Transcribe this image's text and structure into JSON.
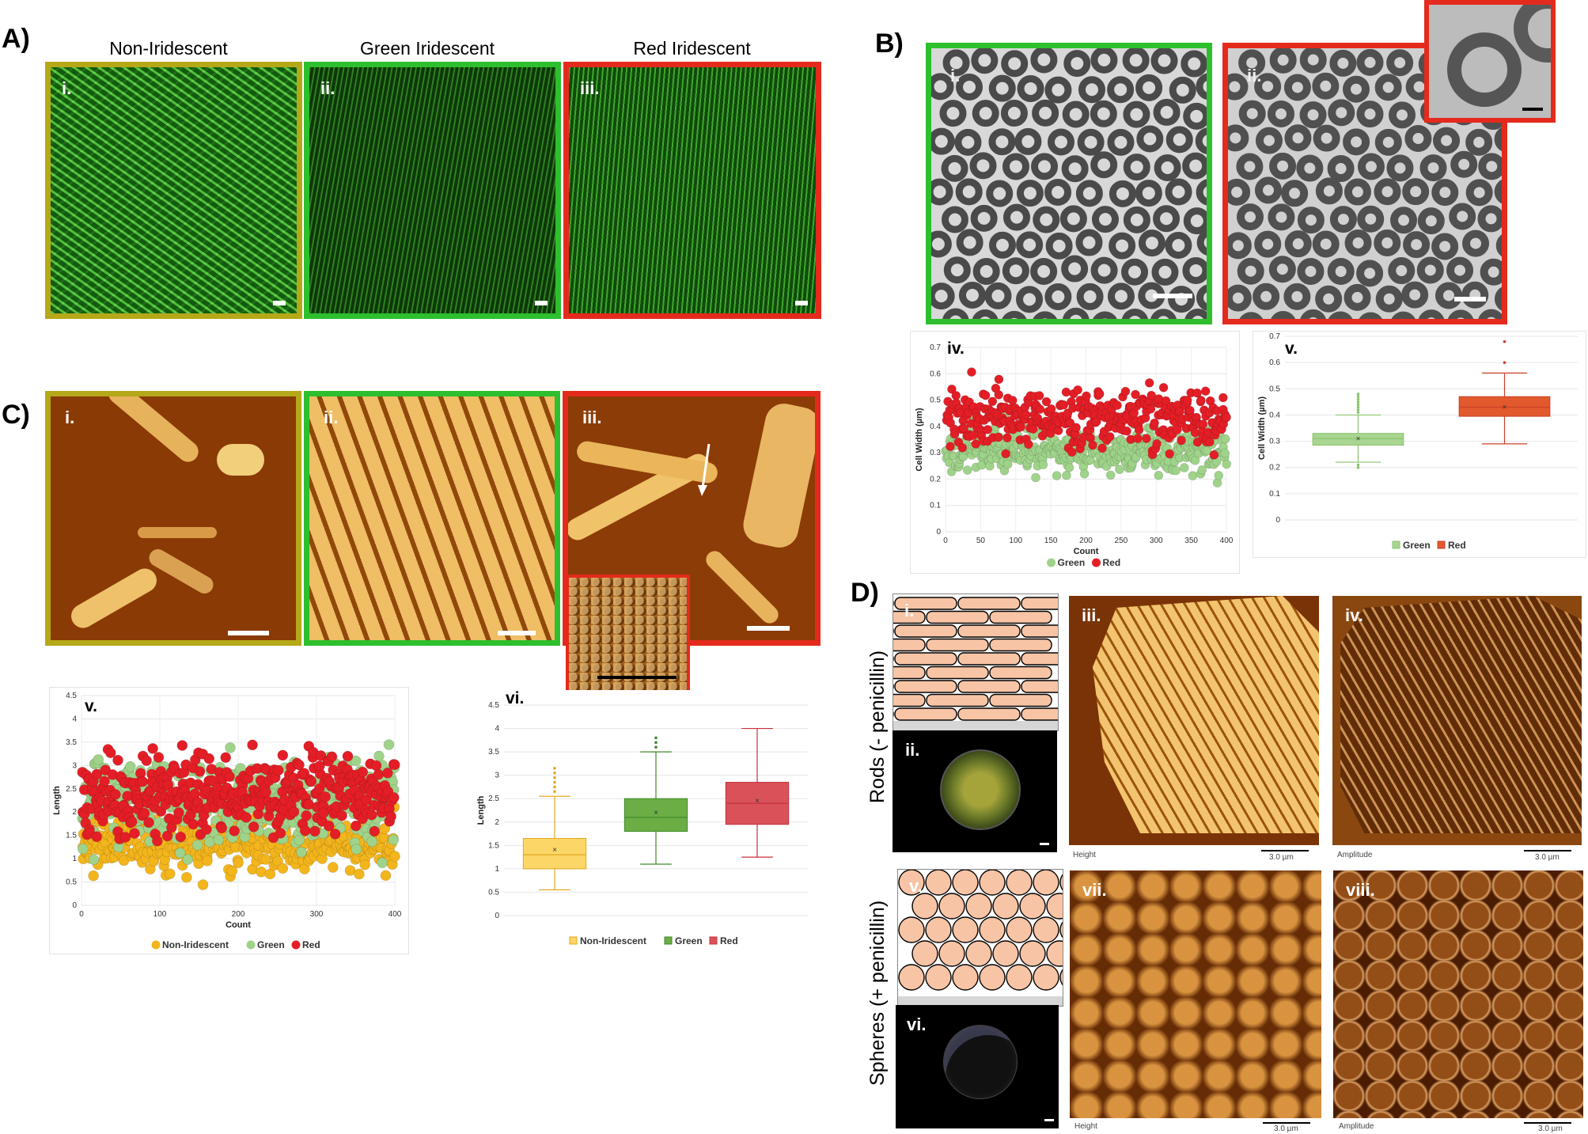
{
  "panelA": {
    "label": "A)",
    "columns": [
      "Non-Iridescent",
      "Green Iridescent",
      "Red Iridescent"
    ],
    "sublabels": [
      "i.",
      "ii.",
      "iii."
    ],
    "frame_colors": [
      "#b5a819",
      "#2dbf2d",
      "#e42a1c"
    ]
  },
  "panelB": {
    "label": "B)",
    "sublabels": [
      "i.",
      "ii.",
      "iv.",
      "v."
    ]
  },
  "panelC": {
    "label": "C)",
    "sublabels": [
      "i.",
      "ii.",
      "iii.",
      "v.",
      "vi."
    ]
  },
  "panelD": {
    "label": "D)",
    "row_labels": [
      "Rods (- penicillin)",
      "Spheres (+ penicillin)"
    ],
    "sublabels": [
      "i.",
      "ii.",
      "iii.",
      "iv.",
      "v.",
      "vi.",
      "vii.",
      "viii."
    ],
    "image_captions": [
      "Height",
      "Amplitude",
      "Height",
      "Amplitude"
    ],
    "scale_label": "3.0 µm"
  },
  "colors": {
    "non_iridescent": "#f3b51c",
    "green": "#9fd38a",
    "red": "#e41e26",
    "box_yellow": "#fcd667",
    "box_green": "#6cae45",
    "box_red": "#d9525a",
    "box_green_light": "#a8d590",
    "box_red_dark": "#e2592d"
  },
  "chart_data": [
    {
      "id": "B-iv",
      "type": "scatter",
      "xlabel": "Count",
      "ylabel": "Cell Width (µm)",
      "xlim": [
        0,
        400
      ],
      "ylim": [
        0,
        0.7
      ],
      "xticks": [
        0,
        50,
        100,
        150,
        200,
        250,
        300,
        350,
        400
      ],
      "yticks": [
        0,
        0.1,
        0.2,
        0.3,
        0.4,
        0.5,
        0.6,
        0.7
      ],
      "legend": "bottom",
      "series": [
        {
          "name": "Green",
          "approx_mean": 0.31,
          "approx_spread": 0.05,
          "count": 400
        },
        {
          "name": "Red",
          "approx_mean": 0.43,
          "approx_spread": 0.07,
          "count": 360
        }
      ]
    },
    {
      "id": "B-v",
      "type": "box",
      "ylabel": "Cell Width (µm)",
      "ylim": [
        0,
        0.7
      ],
      "yticks": [
        0,
        0.1,
        0.2,
        0.3,
        0.4,
        0.5,
        0.6,
        0.7
      ],
      "legend": "bottom",
      "boxes": [
        {
          "name": "Green",
          "min": 0.22,
          "q1": 0.285,
          "median": 0.31,
          "q3": 0.33,
          "max": 0.4,
          "mean": 0.31,
          "outliers": [
            0.2,
            0.21,
            0.41,
            0.42,
            0.43,
            0.44,
            0.45,
            0.46,
            0.47,
            0.48
          ]
        },
        {
          "name": "Red",
          "min": 0.29,
          "q1": 0.395,
          "median": 0.43,
          "q3": 0.47,
          "max": 0.56,
          "mean": 0.43,
          "outliers": [
            0.6,
            0.68
          ]
        }
      ]
    },
    {
      "id": "C-v",
      "type": "scatter",
      "xlabel": "Count",
      "ylabel": "Length",
      "xlim": [
        0,
        400
      ],
      "ylim": [
        0,
        4.5
      ],
      "xticks": [
        0,
        100,
        200,
        300,
        400
      ],
      "yticks": [
        0,
        0.5,
        1,
        1.5,
        2,
        2.5,
        3,
        3.5,
        4,
        4.5
      ],
      "legend": "bottom",
      "series": [
        {
          "name": "Non-Iridescent",
          "approx_mean": 1.3,
          "approx_spread": 0.35,
          "count": 400
        },
        {
          "name": "Green",
          "approx_mean": 2.2,
          "approx_spread": 0.55,
          "count": 400
        },
        {
          "name": "Red",
          "approx_mean": 2.4,
          "approx_spread": 0.55,
          "count": 400
        }
      ]
    },
    {
      "id": "C-vi",
      "type": "box",
      "ylabel": "Length",
      "ylim": [
        0,
        4.5
      ],
      "yticks": [
        0,
        0.5,
        1,
        1.5,
        2,
        2.5,
        3,
        3.5,
        4,
        4.5
      ],
      "legend": "bottom",
      "boxes": [
        {
          "name": "Non-Iridescent",
          "min": 0.55,
          "q1": 1.0,
          "median": 1.3,
          "q3": 1.65,
          "max": 2.55,
          "mean": 1.4,
          "outliers": [
            2.65,
            2.75,
            2.85,
            2.95,
            3.05,
            3.15
          ]
        },
        {
          "name": "Green",
          "min": 1.1,
          "q1": 1.8,
          "median": 2.1,
          "q3": 2.5,
          "max": 3.5,
          "mean": 2.2,
          "outliers": [
            3.6,
            3.7,
            3.8
          ]
        },
        {
          "name": "Red",
          "min": 1.25,
          "q1": 1.95,
          "median": 2.4,
          "q3": 2.85,
          "max": 4.0,
          "mean": 2.45,
          "outliers": []
        }
      ]
    }
  ]
}
